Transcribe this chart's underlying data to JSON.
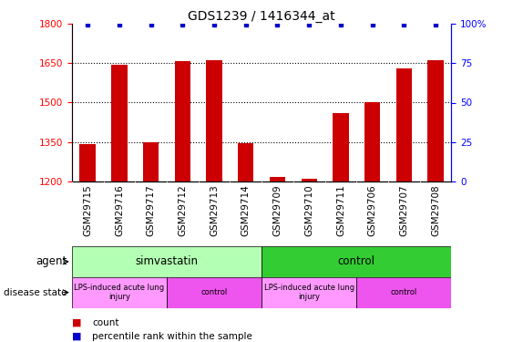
{
  "title": "GDS1239 / 1416344_at",
  "samples": [
    "GSM29715",
    "GSM29716",
    "GSM29717",
    "GSM29712",
    "GSM29713",
    "GSM29714",
    "GSM29709",
    "GSM29710",
    "GSM29711",
    "GSM29706",
    "GSM29707",
    "GSM29708"
  ],
  "counts": [
    1340,
    1645,
    1350,
    1658,
    1660,
    1345,
    1215,
    1210,
    1460,
    1500,
    1630,
    1660
  ],
  "percentiles": [
    100,
    100,
    100,
    100,
    100,
    100,
    100,
    100,
    100,
    100,
    100,
    100
  ],
  "bar_color": "#cc0000",
  "dot_color": "#0000cc",
  "ylim_left": [
    1200,
    1800
  ],
  "ylim_right": [
    0,
    100
  ],
  "yticks_left": [
    1200,
    1350,
    1500,
    1650,
    1800
  ],
  "yticks_right": [
    0,
    25,
    50,
    75,
    100
  ],
  "agent_groups": [
    {
      "label": "simvastatin",
      "start": 0,
      "end": 6,
      "color": "#b3ffb3"
    },
    {
      "label": "control",
      "start": 6,
      "end": 12,
      "color": "#33cc33"
    }
  ],
  "disease_groups": [
    {
      "label": "LPS-induced acute lung\ninjury",
      "start": 0,
      "end": 3,
      "color": "#ff99ff"
    },
    {
      "label": "control",
      "start": 3,
      "end": 6,
      "color": "#ee55ee"
    },
    {
      "label": "LPS-induced acute lung\ninjury",
      "start": 6,
      "end": 9,
      "color": "#ff99ff"
    },
    {
      "label": "control",
      "start": 9,
      "end": 12,
      "color": "#ee55ee"
    }
  ],
  "legend_count_color": "#cc0000",
  "legend_dot_color": "#0000cc",
  "tick_label_bg": "#d0d0d0",
  "title_fontsize": 10,
  "tick_fontsize": 7.5,
  "label_fontsize": 8.5,
  "bar_width": 0.5
}
